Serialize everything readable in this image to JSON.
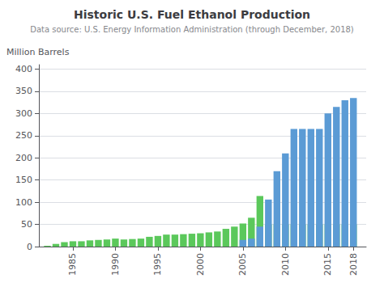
{
  "chart_data": {
    "type": "bar",
    "title": "Historic U.S. Fuel Ethanol Production",
    "subtitle": "Data source: U.S. Energy Information Administration (through December, 2018)",
    "ylabel": "Million Barrels",
    "x": [
      1982,
      1983,
      1984,
      1985,
      1986,
      1987,
      1988,
      1989,
      1990,
      1991,
      1992,
      1993,
      1994,
      1995,
      1996,
      1997,
      1998,
      1999,
      2000,
      2001,
      2002,
      2003,
      2004,
      2005,
      2006,
      2007,
      2008,
      2009,
      2010,
      2011,
      2012,
      2013,
      2014,
      2015,
      2016,
      2017,
      2018
    ],
    "series": [
      {
        "color": "#5bc85b",
        "values": [
          2,
          6,
          10,
          12,
          12,
          14,
          15,
          16,
          18,
          16,
          17,
          18,
          22,
          24,
          27,
          27,
          28,
          29,
          30,
          32,
          34,
          40,
          45,
          52,
          65,
          114,
          50,
          50,
          50,
          50,
          50,
          50,
          50,
          50,
          50,
          50,
          50
        ]
      },
      {
        "color": "#5b9bd5",
        "values": [
          0,
          0,
          0,
          0,
          0,
          0,
          0,
          0,
          0,
          0,
          0,
          0,
          0,
          0,
          0,
          0,
          0,
          0,
          0,
          0,
          0,
          0,
          0,
          15,
          18,
          45,
          106,
          170,
          210,
          265,
          265,
          265,
          265,
          300,
          315,
          330,
          335
        ]
      }
    ],
    "stacked": true,
    "xlim": [
      1981,
      2019.5
    ],
    "xticks": [
      1985,
      1990,
      1995,
      2000,
      2005,
      2010,
      2015,
      2018
    ],
    "ylim": [
      0,
      410
    ],
    "yticks": [
      0,
      50,
      100,
      150,
      200,
      250,
      300,
      350,
      400
    ],
    "grid": true
  }
}
